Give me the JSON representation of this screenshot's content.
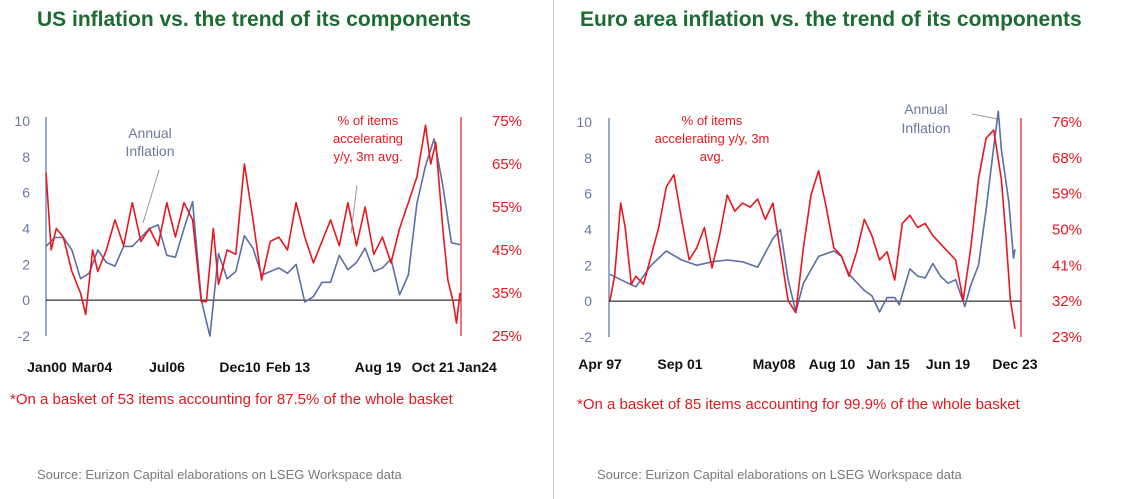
{
  "colors": {
    "inflation": "#5b6ea8",
    "items": "#e8171f",
    "title": "#1d6b33",
    "footnote": "#e0191f"
  },
  "chart_data": [
    {
      "type": "line",
      "title": "US inflation vs. the trend of its components",
      "yleft": {
        "ticks": [
          "10",
          "8",
          "6",
          "4",
          "2",
          "0",
          "-2"
        ],
        "range": [
          -2,
          10
        ]
      },
      "yright": {
        "ticks": [
          "75%",
          "65%",
          "55%",
          "45%",
          "35%",
          "25%"
        ],
        "range": [
          25,
          75
        ]
      },
      "xticks": [
        "Jan00",
        "Mar04",
        "Jul06",
        "Dec10",
        "Feb 13",
        "Aug 19",
        "Oct 21",
        "Jan24"
      ],
      "annotations": {
        "inflation": [
          "Annual",
          "Inflation"
        ],
        "items": [
          "% of items",
          "accelerating",
          "y/y, 3m avg."
        ]
      },
      "footnote": "*On a basket of 53 items accounting for 87.5% of the whole basket",
      "source": "Source: Eurizon Capital elaborations on LSEG Workspace data",
      "series": [
        {
          "axis": "left",
          "x": [
            2000,
            2000.5,
            2001,
            2001.5,
            2002,
            2002.5,
            2003,
            2003.5,
            2004,
            2004.5,
            2005,
            2005.5,
            2006,
            2006.5,
            2007,
            2007.5,
            2008,
            2008.5,
            2009,
            2009.5,
            2010,
            2010.5,
            2011,
            2011.5,
            2012,
            2012.5,
            2013,
            2013.5,
            2014,
            2014.5,
            2015,
            2015.5,
            2016,
            2016.5,
            2017,
            2017.5,
            2018,
            2018.5,
            2019,
            2019.5,
            2020,
            2020.5,
            2021,
            2021.5,
            2022,
            2022.5,
            2023,
            2023.5,
            2024
          ],
          "y": [
            3.0,
            3.5,
            3.5,
            2.8,
            1.2,
            1.5,
            2.8,
            2.1,
            1.9,
            3.0,
            3.0,
            3.5,
            4.0,
            4.2,
            2.5,
            2.4,
            4.0,
            5.5,
            0.0,
            -2.0,
            2.6,
            1.2,
            1.6,
            3.6,
            2.9,
            1.4,
            1.6,
            1.8,
            1.5,
            2.0,
            -0.1,
            0.2,
            1.0,
            1.0,
            2.5,
            1.7,
            2.1,
            2.9,
            1.6,
            1.8,
            2.3,
            0.3,
            1.4,
            5.4,
            7.5,
            9.0,
            6.4,
            3.2,
            3.1
          ]
        },
        {
          "axis": "right",
          "x": [
            2000,
            2000.3,
            2000.6,
            2001,
            2001.5,
            2002,
            2002.3,
            2002.7,
            2003,
            2003.5,
            2004,
            2004.5,
            2005,
            2005.5,
            2006,
            2006.5,
            2007,
            2007.5,
            2008,
            2008.5,
            2009,
            2009.3,
            2009.7,
            2010,
            2010.5,
            2011,
            2011.5,
            2012,
            2012.5,
            2013,
            2013.5,
            2014,
            2014.5,
            2015,
            2015.5,
            2016,
            2016.5,
            2017,
            2017.5,
            2018,
            2018.5,
            2019,
            2019.5,
            2020,
            2020.5,
            2021,
            2021.5,
            2022,
            2022.3,
            2022.6,
            2023,
            2023.3,
            2023.6,
            2023.8,
            2024
          ],
          "y": [
            63,
            45,
            50,
            48,
            40,
            35,
            30,
            45,
            40,
            45,
            52,
            46,
            56,
            47,
            50,
            46,
            56,
            48,
            56,
            52,
            33,
            33,
            50,
            37,
            45,
            44,
            65,
            52,
            38,
            47,
            48,
            45,
            56,
            48,
            42,
            47,
            52,
            46,
            56,
            46,
            55,
            44,
            48,
            42,
            50,
            56,
            62,
            74,
            65,
            70,
            50,
            38,
            33,
            28,
            35
          ]
        }
      ]
    },
    {
      "type": "line",
      "title": "Euro area inflation vs. the trend of its components",
      "yleft": {
        "ticks": [
          "10",
          "8",
          "6",
          "4",
          "2",
          "0",
          "-2"
        ],
        "range": [
          -2,
          10
        ]
      },
      "yright": {
        "ticks": [
          "76%",
          "68%",
          "59%",
          "50%",
          "41%",
          "32%",
          "23%"
        ],
        "range": [
          23,
          76
        ]
      },
      "xticks": [
        "Apr 97",
        "Sep 01",
        "May08",
        "Aug 10",
        "Jan 15",
        "Jun 19",
        "Dec 23"
      ],
      "annotations": {
        "inflation": [
          "Annual",
          "Inflation"
        ],
        "items": [
          "% of items",
          "accelerating y/y, 3m",
          "avg."
        ]
      },
      "footnote": "*On a basket of 85 items accounting for 99.9% of the whole basket",
      "source": "Source: Eurizon Capital elaborations on LSEG Workspace data",
      "series": [
        {
          "axis": "left",
          "x": [
            1997.3,
            1998,
            1999,
            2000,
            2001,
            2002,
            2003,
            2004,
            2005,
            2006,
            2007,
            2008,
            2008.5,
            2009,
            2009.5,
            2010,
            2011,
            2012,
            2012.5,
            2013,
            2014,
            2014.5,
            2015,
            2015.5,
            2016,
            2016.3,
            2017,
            2017.5,
            2018,
            2018.5,
            2019,
            2019.5,
            2020,
            2020.6,
            2021,
            2021.5,
            2022,
            2022.5,
            2022.8,
            2023,
            2023.5,
            2023.8,
            2023.9
          ],
          "y": [
            1.5,
            1.2,
            0.8,
            2.0,
            2.8,
            2.3,
            2.0,
            2.2,
            2.3,
            2.2,
            1.9,
            3.5,
            4.0,
            1.2,
            -0.6,
            1.0,
            2.5,
            2.8,
            2.5,
            1.5,
            0.6,
            0.3,
            -0.6,
            0.2,
            0.2,
            -0.2,
            1.8,
            1.4,
            1.3,
            2.1,
            1.4,
            1.0,
            1.2,
            -0.3,
            0.9,
            2.0,
            5.1,
            8.6,
            10.6,
            8.5,
            5.5,
            2.4,
            2.9
          ]
        },
        {
          "axis": "right",
          "x": [
            1997.3,
            1997.6,
            1998,
            1998.3,
            1998.7,
            1999,
            1999.5,
            2000,
            2000.5,
            2001,
            2001.5,
            2002,
            2002.5,
            2003,
            2003.5,
            2004,
            2004.5,
            2005,
            2005.5,
            2006,
            2006.5,
            2007,
            2007.5,
            2008,
            2008.5,
            2009,
            2009.5,
            2010,
            2010.5,
            2011,
            2011.5,
            2012,
            2012.5,
            2013,
            2013.5,
            2014,
            2014.5,
            2015,
            2015.5,
            2016,
            2016.5,
            2017,
            2017.5,
            2018,
            2018.5,
            2019,
            2019.5,
            2020,
            2020.5,
            2021,
            2021.5,
            2022,
            2022.5,
            2023,
            2023.3,
            2023.6,
            2023.9
          ],
          "y": [
            32,
            38,
            56,
            50,
            36,
            38,
            36,
            43,
            50,
            60,
            63,
            52,
            42,
            45,
            50,
            40,
            48,
            58,
            54,
            56,
            55,
            57,
            52,
            56,
            44,
            32,
            29,
            45,
            58,
            64,
            55,
            45,
            43,
            38,
            44,
            52,
            48,
            42,
            44,
            37,
            51,
            53,
            50,
            51,
            48,
            46,
            44,
            42,
            32,
            45,
            62,
            72,
            74,
            62,
            48,
            32,
            25
          ]
        }
      ]
    }
  ]
}
